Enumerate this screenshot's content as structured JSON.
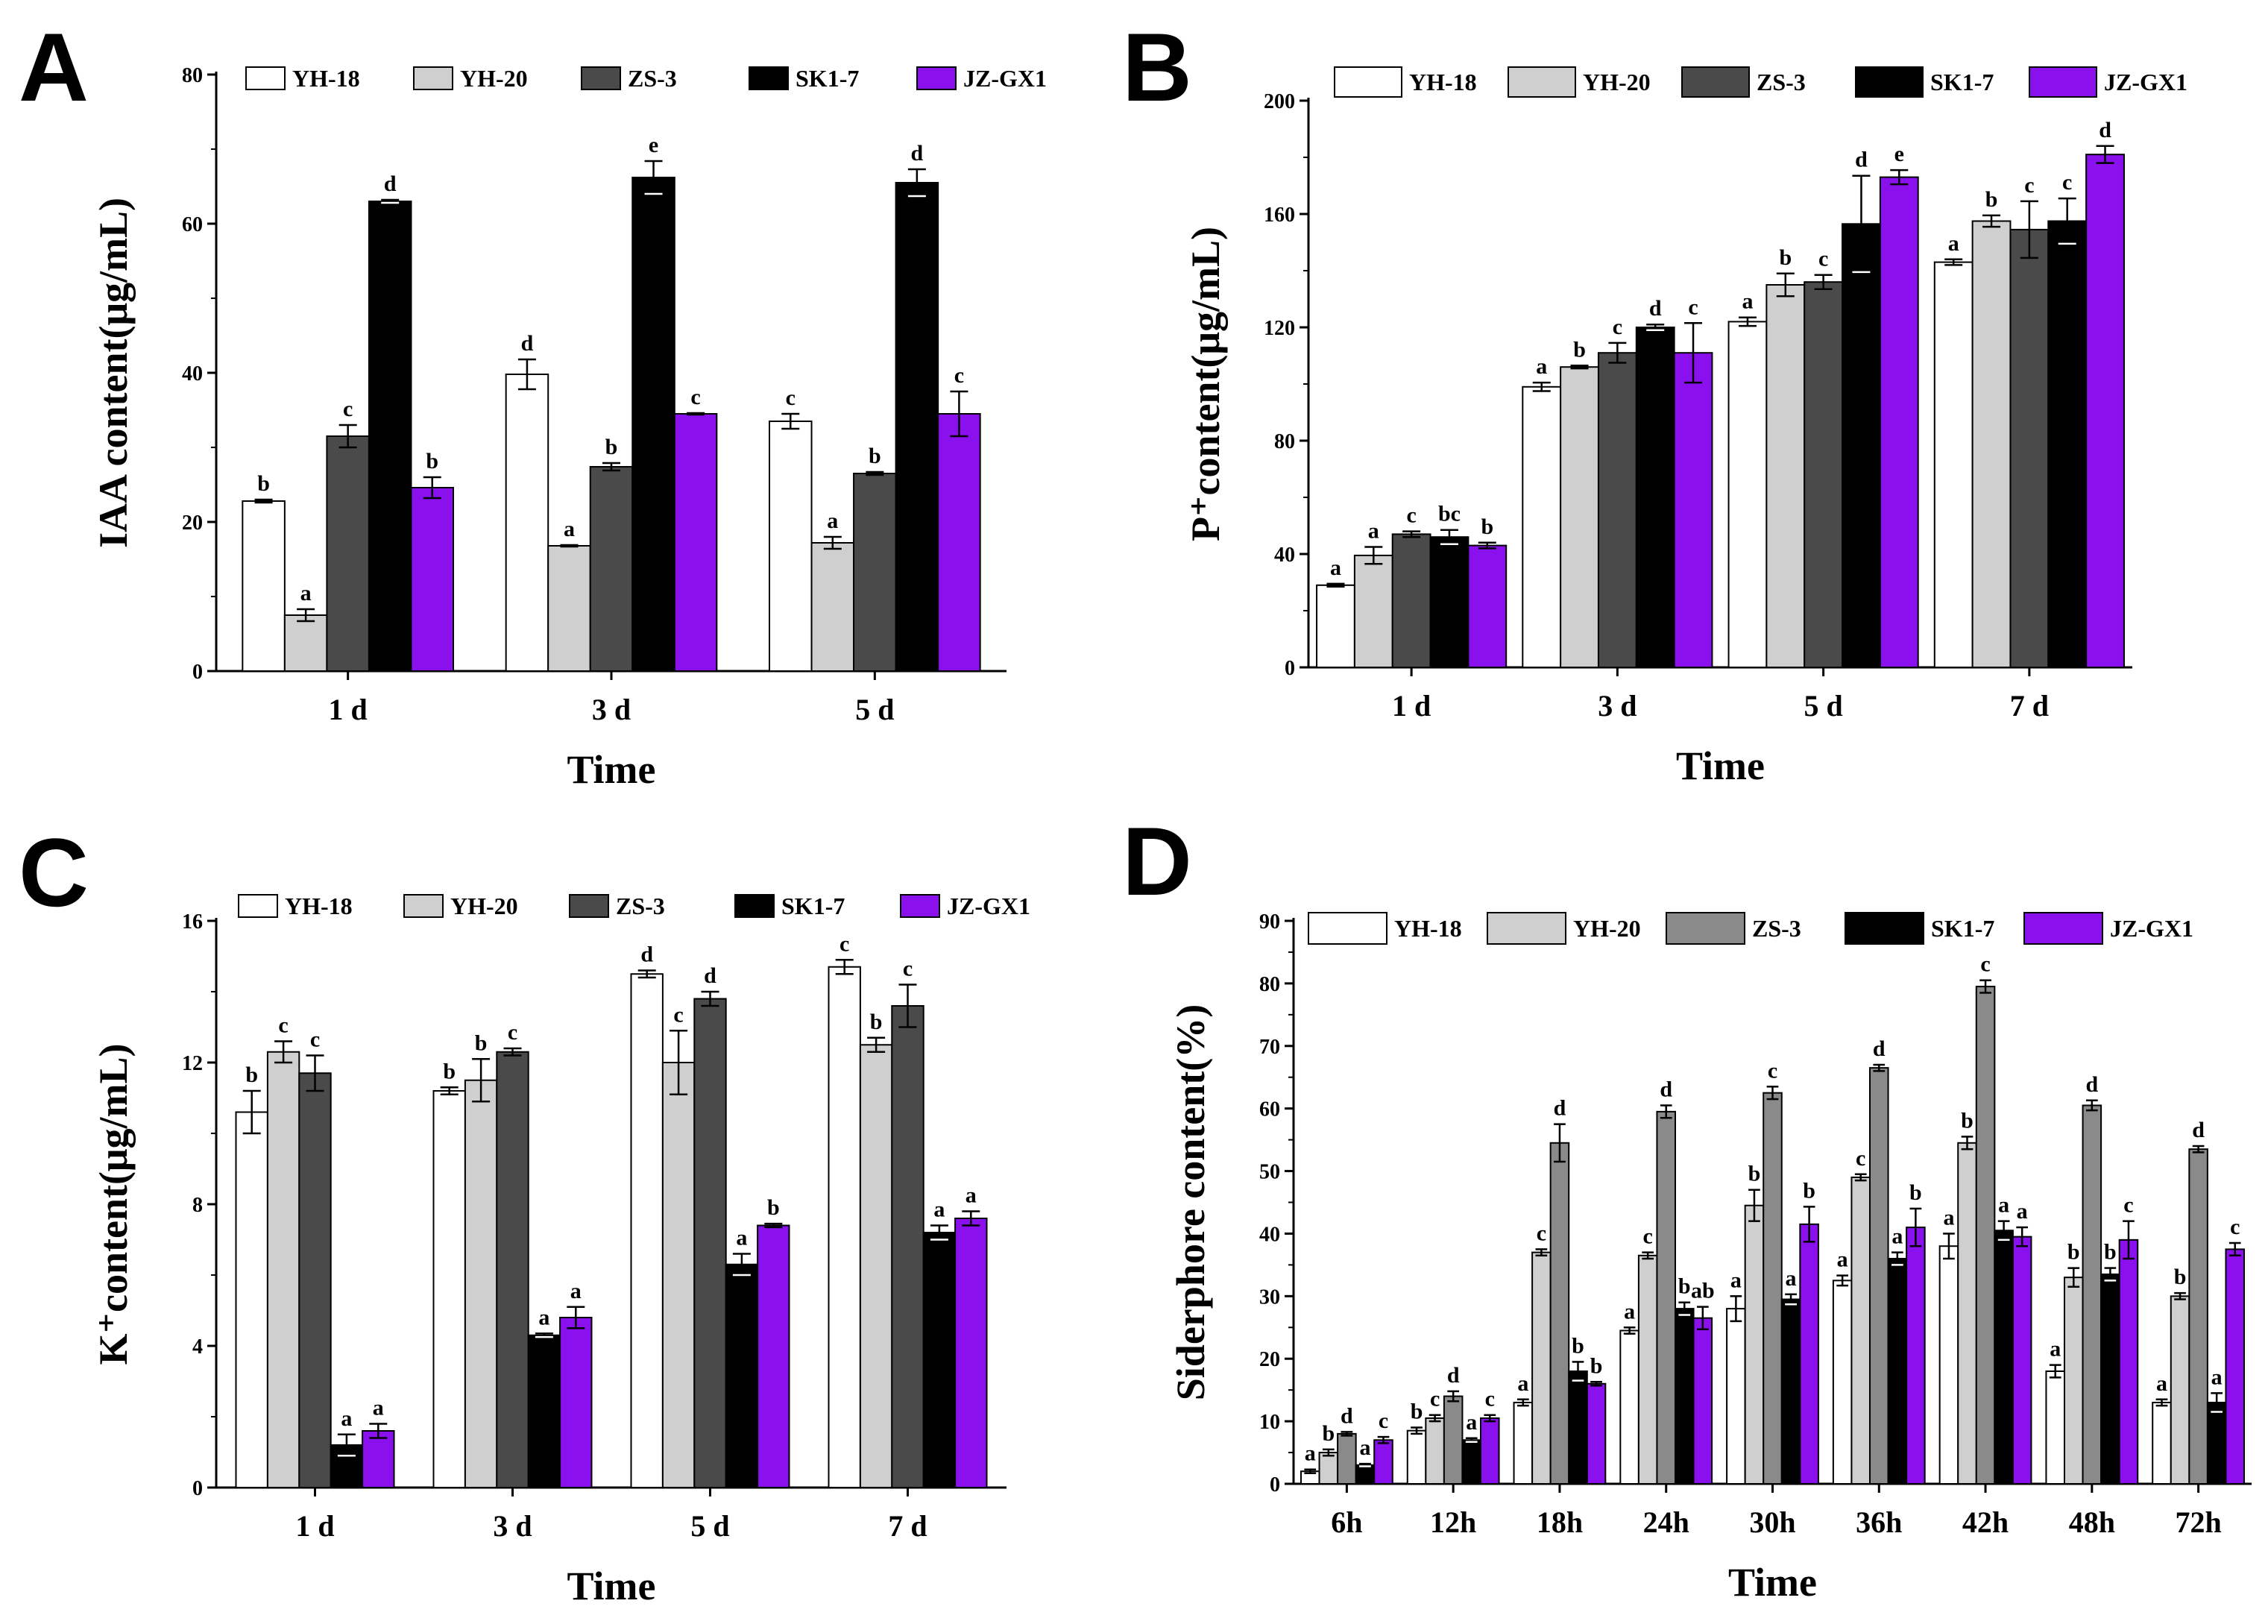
{
  "figure": {
    "colors": {
      "YH-18": "#ffffff",
      "YH-20": "#cfcfcf",
      "ZS-3": "#4a4a4a",
      "SK1-7": "#000000",
      "JZ-GX1": "#8a10ee",
      "ZS-3 (panel D)": "#8a8a8a"
    }
  },
  "chart_data": [
    {
      "panel": "A",
      "type": "bar",
      "title": "",
      "xlabel": "Time",
      "ylabel": "IAA content(μg/mL)",
      "ylim": [
        0,
        80
      ],
      "yticks": [
        "0",
        "20",
        "40",
        "60",
        "80"
      ],
      "categories": [
        "1 d",
        "3 d",
        "5 d"
      ],
      "legend": "top",
      "series": [
        {
          "name": "YH-18",
          "values": [
            22.8,
            39.8,
            33.5
          ],
          "errors": [
            0.2,
            2.0,
            1.0
          ],
          "labels": [
            "b",
            "d",
            "c"
          ]
        },
        {
          "name": "YH-20",
          "values": [
            7.5,
            16.8,
            17.2
          ],
          "errors": [
            0.8,
            0.1,
            0.8
          ],
          "labels": [
            "a",
            "a",
            "a"
          ]
        },
        {
          "name": "ZS-3",
          "values": [
            31.5,
            27.4,
            26.5
          ],
          "errors": [
            1.5,
            0.5,
            0.2
          ],
          "labels": [
            "c",
            "b",
            "b"
          ]
        },
        {
          "name": "SK1-7",
          "values": [
            63.0,
            66.2,
            65.5
          ],
          "errors": [
            0.2,
            2.2,
            1.8
          ],
          "labels": [
            "d",
            "e",
            "d"
          ]
        },
        {
          "name": "JZ-GX1",
          "values": [
            24.6,
            34.5,
            34.5
          ],
          "errors": [
            1.4,
            0.1,
            3.0
          ],
          "labels": [
            "b",
            "c",
            "c"
          ]
        }
      ]
    },
    {
      "panel": "B",
      "type": "bar",
      "title": "",
      "xlabel": "Time",
      "ylabel": "P⁺content(μg/mL)",
      "ylim": [
        0,
        200
      ],
      "yticks": [
        "0",
        "40",
        "80",
        "120",
        "160",
        "200"
      ],
      "categories": [
        "1 d",
        "3 d",
        "5 d",
        "7 d"
      ],
      "legend": "top",
      "series": [
        {
          "name": "YH-18",
          "values": [
            29,
            99,
            122,
            143
          ],
          "errors": [
            0.5,
            1.5,
            1.5,
            1.0
          ],
          "labels": [
            "a",
            "a",
            "a",
            "a"
          ]
        },
        {
          "name": "YH-20",
          "values": [
            39.5,
            106,
            135,
            157.5
          ],
          "errors": [
            3.0,
            0.5,
            4.0,
            2.0
          ],
          "labels": [
            "a",
            "b",
            "b",
            "b"
          ]
        },
        {
          "name": "ZS-3",
          "values": [
            47,
            111,
            136,
            154.5
          ],
          "errors": [
            1.0,
            3.5,
            2.5,
            10.0
          ],
          "labels": [
            "c",
            "c",
            "c",
            "c"
          ]
        },
        {
          "name": "SK1-7",
          "values": [
            46,
            120,
            156.5,
            157.5
          ],
          "errors": [
            2.5,
            1.0,
            17.0,
            8.0
          ],
          "labels": [
            "bc",
            "d",
            "d",
            "c"
          ]
        },
        {
          "name": "JZ-GX1",
          "values": [
            43,
            111,
            173,
            181
          ],
          "errors": [
            1.0,
            10.5,
            2.5,
            3.0
          ],
          "labels": [
            "b",
            "c",
            "e",
            "d"
          ]
        }
      ]
    },
    {
      "panel": "C",
      "type": "bar",
      "title": "",
      "xlabel": "Time",
      "ylabel": "K⁺content(μg/mL)",
      "ylim": [
        0,
        16
      ],
      "yticks": [
        "0",
        "4",
        "8",
        "12",
        "16"
      ],
      "categories": [
        "1 d",
        "3 d",
        "5 d",
        "7 d"
      ],
      "legend": "top",
      "series": [
        {
          "name": "YH-18",
          "values": [
            10.6,
            11.2,
            14.5,
            14.7
          ],
          "errors": [
            0.6,
            0.1,
            0.1,
            0.2
          ],
          "labels": [
            "b",
            "b",
            "d",
            "c"
          ]
        },
        {
          "name": "YH-20",
          "values": [
            12.3,
            11.5,
            12.0,
            12.5
          ],
          "errors": [
            0.3,
            0.6,
            0.9,
            0.2
          ],
          "labels": [
            "c",
            "b",
            "c",
            "b"
          ]
        },
        {
          "name": "ZS-3",
          "values": [
            11.7,
            12.3,
            13.8,
            13.6
          ],
          "errors": [
            0.5,
            0.1,
            0.2,
            0.6
          ],
          "labels": [
            "c",
            "c",
            "d",
            "c"
          ]
        },
        {
          "name": "SK1-7",
          "values": [
            1.2,
            4.3,
            6.3,
            7.2
          ],
          "errors": [
            0.3,
            0.05,
            0.3,
            0.2
          ],
          "labels": [
            "a",
            "a",
            "a",
            "a"
          ]
        },
        {
          "name": "JZ-GX1",
          "values": [
            1.6,
            4.8,
            7.4,
            7.6
          ],
          "errors": [
            0.2,
            0.3,
            0.05,
            0.2
          ],
          "labels": [
            "a",
            "a",
            "b",
            "a"
          ]
        }
      ]
    },
    {
      "panel": "D",
      "type": "bar",
      "title": "",
      "xlabel": "Time",
      "ylabel": "Siderphore content(%)",
      "ylim": [
        0,
        90
      ],
      "yticks": [
        "0",
        "10",
        "20",
        "30",
        "40",
        "50",
        "60",
        "70",
        "80",
        "90"
      ],
      "categories": [
        "6h",
        "12h",
        "18h",
        "24h",
        "30h",
        "36h",
        "42h",
        "48h",
        "72h"
      ],
      "legend": "top",
      "series": [
        {
          "name": "YH-18",
          "values": [
            2,
            8.5,
            13,
            24.5,
            28,
            32.5,
            38,
            18,
            13
          ],
          "errors": [
            0.3,
            0.5,
            0.5,
            0.5,
            2.0,
            0.8,
            2.0,
            1.0,
            0.5
          ],
          "labels": [
            "a",
            "b",
            "a",
            "a",
            "a",
            "a",
            "a",
            "a",
            "a"
          ]
        },
        {
          "name": "YH-20",
          "values": [
            5,
            10.5,
            37,
            36.5,
            44.5,
            49,
            54.5,
            33,
            30
          ],
          "errors": [
            0.5,
            0.5,
            0.5,
            0.5,
            2.5,
            0.5,
            1.0,
            1.5,
            0.5
          ],
          "labels": [
            "b",
            "c",
            "c",
            "c",
            "b",
            "c",
            "b",
            "b",
            "b"
          ]
        },
        {
          "name": "ZS-3",
          "values": [
            8,
            14,
            54.5,
            59.5,
            62.5,
            66.5,
            79.5,
            60.5,
            53.5
          ],
          "errors": [
            0.3,
            0.8,
            3.0,
            1.0,
            1.0,
            0.5,
            1.0,
            0.8,
            0.5
          ],
          "labels": [
            "d",
            "d",
            "d",
            "d",
            "c",
            "d",
            "c",
            "d",
            "d"
          ]
        },
        {
          "name": "SK1-7",
          "values": [
            3,
            7,
            18,
            28,
            29.5,
            36,
            40.5,
            33.5,
            13
          ],
          "errors": [
            0.2,
            0.3,
            1.5,
            1.0,
            0.8,
            1.0,
            1.5,
            1.0,
            1.5
          ],
          "labels": [
            "a",
            "a",
            "b",
            "b",
            "a",
            "a",
            "a",
            "b",
            "a"
          ]
        },
        {
          "name": "JZ-GX1",
          "values": [
            7,
            10.5,
            16,
            26.5,
            41.5,
            41,
            39.5,
            39,
            37.5
          ],
          "errors": [
            0.5,
            0.5,
            0.3,
            1.8,
            2.8,
            3.0,
            1.5,
            3.0,
            1.0
          ],
          "labels": [
            "c",
            "c",
            "b",
            "ab",
            "b",
            "b",
            "a",
            "c",
            "c"
          ]
        }
      ]
    }
  ]
}
